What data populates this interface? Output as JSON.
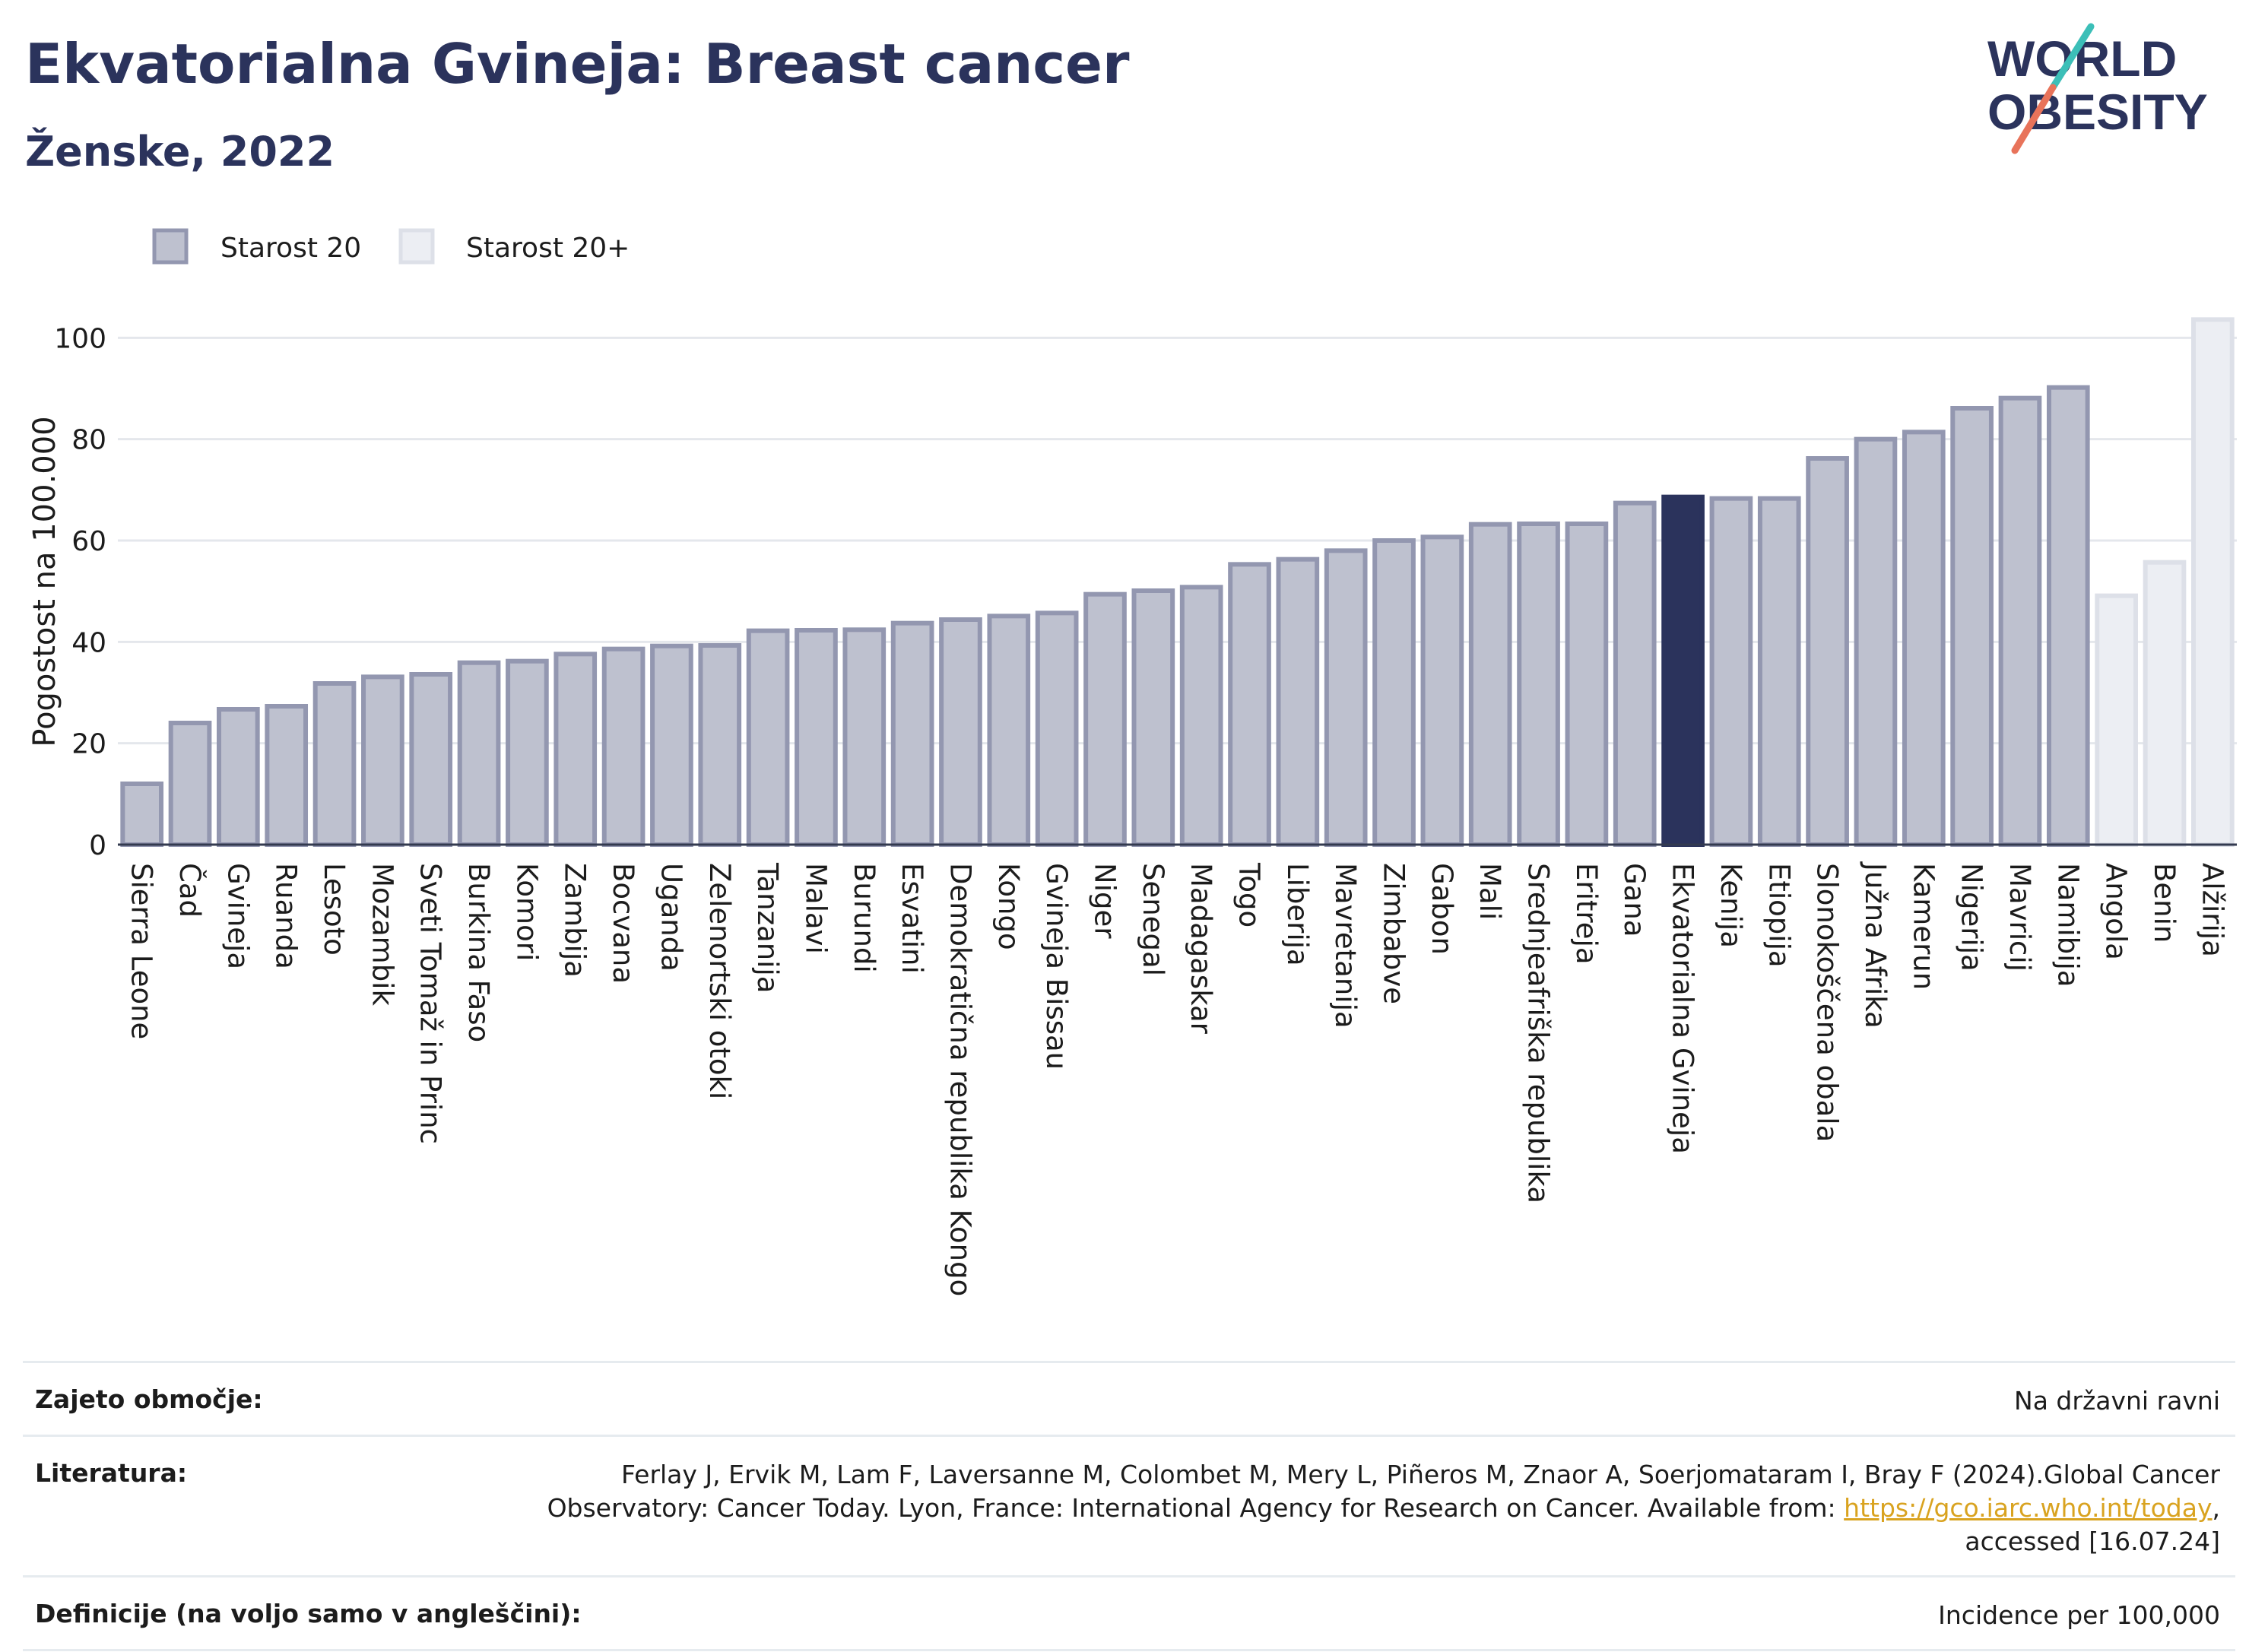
{
  "header": {
    "title": "Ekvatorialna Gvineja: Breast cancer",
    "subtitle": "Ženske, 2022"
  },
  "logo": {
    "line1": "WORLD",
    "line2": "OBESITY"
  },
  "colors": {
    "highlight": "#2b335c",
    "bar_fill": "#bec1cf",
    "bar_stroke": "#9397b0",
    "light_fill": "#eceef3",
    "light_stroke": "#dde0e8",
    "grid": "#e4e7ec",
    "logo_teal": "#3cbfb8",
    "logo_coral": "#e8735a"
  },
  "chart_data": {
    "type": "bar",
    "title": "Ekvatorialna Gvineja: Breast cancer",
    "subtitle": "Ženske, 2022",
    "ylabel": "Pogostost na 100.000",
    "xlabel": "",
    "ylim": [
      0,
      105
    ],
    "yticks": [
      0,
      20,
      40,
      60,
      80,
      100
    ],
    "grid": true,
    "legend": {
      "placement": "top-left",
      "entries": [
        "Starost 20",
        "Starost 20+"
      ]
    },
    "highlight": "Ekvatorialna Gvineja",
    "categories": [
      "Sierra Leone",
      "Čad",
      "Gvineja",
      "Ruanda",
      "Lesoto",
      "Mozambik",
      "Sveti Tomaž in Princ",
      "Burkina Faso",
      "Komori",
      "Zambija",
      "Bocvana",
      "Uganda",
      "Zelenortski otoki",
      "Tanzanija",
      "Malavi",
      "Burundi",
      "Esvatini",
      "Demokratična republika Kongo",
      "Kongo",
      "Gvineja Bissau",
      "Niger",
      "Senegal",
      "Madagaskar",
      "Togo",
      "Liberija",
      "Mavretanija",
      "Zimbabve",
      "Gabon",
      "Mali",
      "Srednjeafriška republika",
      "Eritreja",
      "Gana",
      "Ekvatorialna Gvineja",
      "Kenija",
      "Etiopija",
      "Slonokoščena obala",
      "Južna Afrika",
      "Kamerun",
      "Nigerija",
      "Mavricij",
      "Namibija",
      "Angola",
      "Benin",
      "Alžirija"
    ],
    "values": [
      12,
      24,
      26.7,
      27.3,
      31.8,
      33.1,
      33.6,
      35.9,
      36.2,
      37.6,
      38.6,
      39.2,
      39.3,
      42.2,
      42.3,
      42.4,
      43.7,
      44.4,
      45.1,
      45.7,
      49.4,
      50.1,
      50.8,
      55.3,
      56.3,
      58,
      60,
      60.7,
      63.2,
      63.3,
      63.3,
      67.4,
      68.6,
      68.3,
      68.3,
      76.2,
      80,
      81.4,
      86.1,
      88.1,
      90.2,
      49.1,
      55.7,
      103.6
    ],
    "series_group": [
      "Starost 20",
      "Starost 20",
      "Starost 20",
      "Starost 20",
      "Starost 20",
      "Starost 20",
      "Starost 20",
      "Starost 20",
      "Starost 20",
      "Starost 20",
      "Starost 20",
      "Starost 20",
      "Starost 20",
      "Starost 20",
      "Starost 20",
      "Starost 20",
      "Starost 20",
      "Starost 20",
      "Starost 20",
      "Starost 20",
      "Starost 20",
      "Starost 20",
      "Starost 20",
      "Starost 20",
      "Starost 20",
      "Starost 20",
      "Starost 20",
      "Starost 20",
      "Starost 20",
      "Starost 20",
      "Starost 20",
      "Starost 20",
      "Starost 20",
      "Starost 20",
      "Starost 20",
      "Starost 20",
      "Starost 20",
      "Starost 20",
      "Starost 20",
      "Starost 20",
      "Starost 20",
      "Starost 20+",
      "Starost 20+",
      "Starost 20+"
    ]
  },
  "footer": {
    "coverage_label": "Zajeto območje:",
    "coverage_value": "Na državni ravni",
    "literature_label": "Literatura:",
    "literature_line1": "Ferlay J, Ervik M, Lam F, Laversanne M, Colombet M, Mery L, Piñeros M, Znaor A, Soerjomataram I, Bray F (2024).Global Cancer",
    "literature_line2_prefix": "Observatory: Cancer Today. Lyon, France: International Agency for Research on Cancer. Available from: ",
    "literature_link": "https://gco.iarc.who.int/today",
    "literature_line2_suffix": ",",
    "literature_line3": "accessed [16.07.24]",
    "definitions_label": "Definicije (na voljo samo v angleščini):",
    "definitions_value": "Incidence per 100,000"
  }
}
